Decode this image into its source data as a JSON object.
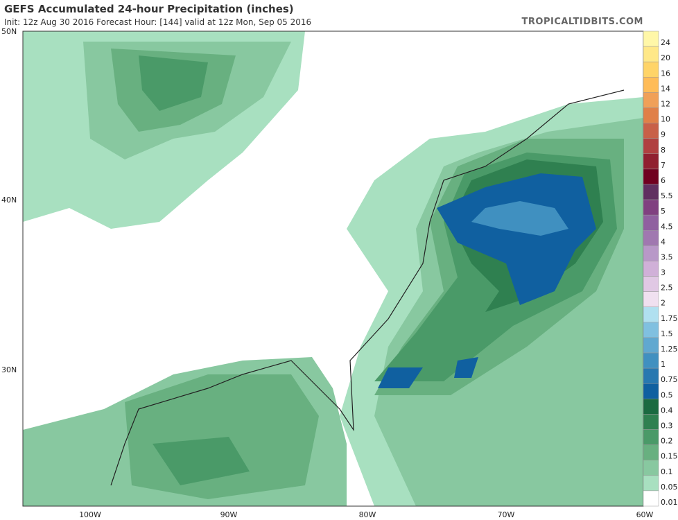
{
  "header": {
    "title": "GEFS Accumulated 24-hour Precipitation (inches)",
    "subtitle": "Init: 12z Aug 30 2016   Forecast Hour: [144]   valid at 12z Mon, Sep 05 2016",
    "brand": "TROPICALTIDBITS.COM"
  },
  "latitude_labels": [
    "50N",
    "40N",
    "30N"
  ],
  "longitude_labels": [
    "100W",
    "90W",
    "80W",
    "70W",
    "60W"
  ],
  "colorbar": [
    {
      "label": "24",
      "color": "#fff7a8"
    },
    {
      "label": "20",
      "color": "#ffe888"
    },
    {
      "label": "16",
      "color": "#ffd468"
    },
    {
      "label": "14",
      "color": "#ffbc58"
    },
    {
      "label": "12",
      "color": "#f0a058"
    },
    {
      "label": "10",
      "color": "#e08048"
    },
    {
      "label": "9",
      "color": "#c86048"
    },
    {
      "label": "8",
      "color": "#b04040"
    },
    {
      "label": "7",
      "color": "#902030"
    },
    {
      "label": "6",
      "color": "#700020"
    },
    {
      "label": "5.5",
      "color": "#603060"
    },
    {
      "label": "5",
      "color": "#804080"
    },
    {
      "label": "4.5",
      "color": "#9060a0"
    },
    {
      "label": "4",
      "color": "#a078b0"
    },
    {
      "label": "3.5",
      "color": "#b898c8"
    },
    {
      "label": "3",
      "color": "#d0b0d8"
    },
    {
      "label": "2.5",
      "color": "#e0c8e4"
    },
    {
      "label": "2",
      "color": "#f0e0f0"
    },
    {
      "label": "1.75",
      "color": "#b0e0f0"
    },
    {
      "label": "1.5",
      "color": "#80c0e0"
    },
    {
      "label": "1.25",
      "color": "#60a8d0"
    },
    {
      "label": "1",
      "color": "#4090c0"
    },
    {
      "label": "0.75",
      "color": "#2878b0"
    },
    {
      "label": "0.5",
      "color": "#1060a0"
    },
    {
      "label": "0.4",
      "color": "#1a6a40"
    },
    {
      "label": "0.3",
      "color": "#2f8050"
    },
    {
      "label": "0.2",
      "color": "#4a9a68"
    },
    {
      "label": "0.15",
      "color": "#68b080"
    },
    {
      "label": "0.1",
      "color": "#88c8a0"
    },
    {
      "label": "0.05",
      "color": "#a8e0c0"
    },
    {
      "label": "0.01",
      "color": "#ffffff"
    }
  ]
}
